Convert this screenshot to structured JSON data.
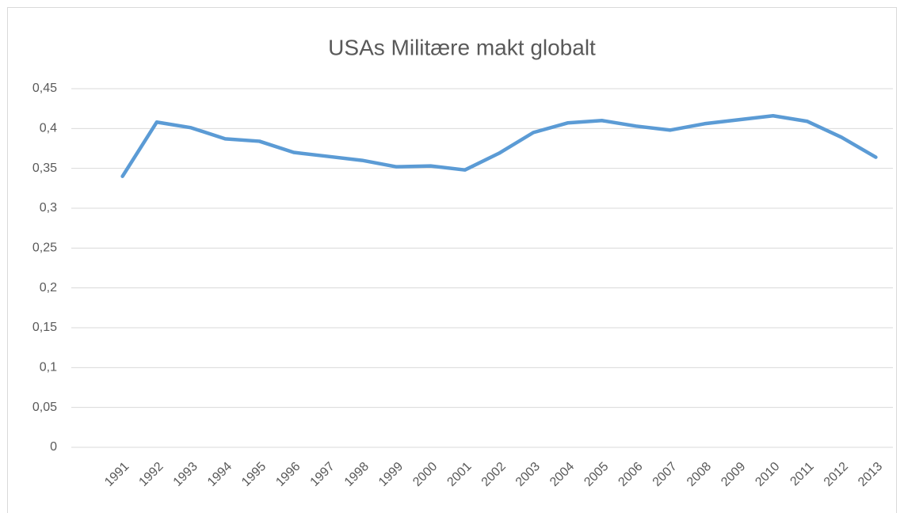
{
  "chart_data": {
    "type": "line",
    "title": "USAs Militære makt globalt",
    "categories": [
      "1991",
      "1992",
      "1993",
      "1994",
      "1995",
      "1996",
      "1997",
      "1998",
      "1999",
      "2000",
      "2001",
      "2002",
      "2003",
      "2004",
      "2005",
      "2006",
      "2007",
      "2008",
      "2009",
      "2010",
      "2011",
      "2012",
      "2013"
    ],
    "values": [
      0.34,
      0.408,
      0.401,
      0.387,
      0.384,
      0.37,
      0.365,
      0.36,
      0.352,
      0.353,
      0.348,
      0.369,
      0.395,
      0.407,
      0.41,
      0.403,
      0.398,
      0.406,
      0.411,
      0.416,
      0.409,
      0.389,
      0.364
    ],
    "color": "#5b9bd5",
    "ylim": [
      0,
      0.45
    ],
    "yticks": [
      0,
      {
        "value": 0.05,
        "label": "0,05"
      },
      {
        "value": 0.1,
        "label": "0,1"
      },
      {
        "value": 0.15,
        "label": "0,15"
      },
      {
        "value": 0.2,
        "label": "0,2"
      },
      {
        "value": 0.25,
        "label": "0,25"
      },
      {
        "value": 0.3,
        "label": "0,3"
      },
      {
        "value": 0.35,
        "label": "0,35"
      },
      {
        "value": 0.4,
        "label": "0,4"
      },
      {
        "value": 0.45,
        "label": "0,45"
      }
    ],
    "grid": true
  }
}
